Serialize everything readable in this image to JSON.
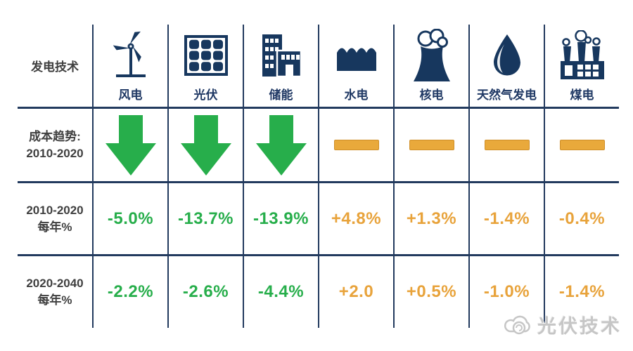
{
  "table": {
    "corner_label": "发电技术",
    "row_labels": {
      "trend": [
        "成本趋势:",
        "2010-2020"
      ],
      "rate_2010_2020": [
        "2010-2020",
        "每年%"
      ],
      "rate_2020_2040": [
        "2020-2040",
        "每年%"
      ]
    },
    "columns": [
      {
        "key": "wind",
        "label": "风电",
        "icon": "wind-turbine-icon",
        "trend": "down-arrow",
        "trend_color": "#27AE4B",
        "value_color": "#27AE4B",
        "rate_2010_2020": "-5.0%",
        "rate_2020_2040": "-2.2%"
      },
      {
        "key": "solar",
        "label": "光伏",
        "icon": "solar-panel-icon",
        "trend": "down-arrow",
        "trend_color": "#27AE4B",
        "value_color": "#27AE4B",
        "rate_2010_2020": "-13.7%",
        "rate_2020_2040": "-2.6%"
      },
      {
        "key": "storage",
        "label": "储能",
        "icon": "buildings-icon",
        "trend": "down-arrow",
        "trend_color": "#27AE4B",
        "value_color": "#27AE4B",
        "rate_2010_2020": "-13.9%",
        "rate_2020_2040": "-4.4%"
      },
      {
        "key": "hydro",
        "label": "水电",
        "icon": "water-icon",
        "trend": "flat-dash",
        "trend_color": "#E9A93B",
        "value_color": "#E8A33B",
        "rate_2010_2020": "+4.8%",
        "rate_2020_2040": "+2.0"
      },
      {
        "key": "nuclear",
        "label": "核电",
        "icon": "cooling-tower-icon",
        "trend": "flat-dash",
        "trend_color": "#E9A93B",
        "value_color": "#E8A33B",
        "rate_2010_2020": "+1.3%",
        "rate_2020_2040": "+0.5%"
      },
      {
        "key": "gas",
        "label": "天然气发电",
        "icon": "droplet-icon",
        "trend": "flat-dash",
        "trend_color": "#E9A93B",
        "value_color": "#E8A33B",
        "rate_2010_2020": "-1.4%",
        "rate_2020_2040": "-1.0%"
      },
      {
        "key": "coal",
        "label": "煤电",
        "icon": "factory-icon",
        "trend": "flat-dash",
        "trend_color": "#E9A93B",
        "value_color": "#E8A33B",
        "rate_2010_2020": "-0.4%",
        "rate_2020_2040": "-1.4%"
      }
    ]
  },
  "chart_data": {
    "type": "table",
    "columns": [
      "风电",
      "光伏",
      "储能",
      "水电",
      "核电",
      "天然气发电",
      "煤电"
    ],
    "rows": [
      {
        "label": "成本趋势: 2010-2020",
        "values": [
          "down",
          "down",
          "down",
          "flat",
          "flat",
          "flat",
          "flat"
        ]
      },
      {
        "label": "2010-2020 每年%",
        "values": [
          -5.0,
          -13.7,
          -13.9,
          4.8,
          1.3,
          -1.4,
          -0.4
        ]
      },
      {
        "label": "2020-2040 每年%",
        "values": [
          -2.2,
          -2.6,
          -4.4,
          2.0,
          0.5,
          -1.0,
          -1.4
        ]
      }
    ],
    "legend_position": "none",
    "grid": true
  },
  "colors": {
    "icon_navy": "#17375E",
    "header_text_navy": "#1F3864",
    "grid_line": "#223A5E",
    "green": "#27AE4B",
    "orange": "#E8A33B",
    "row_label_text": "#3F3F3F",
    "watermark_gray": "#C6C6C6"
  },
  "watermark": {
    "label": "光伏技术",
    "icon": "cloud-logo-icon"
  }
}
